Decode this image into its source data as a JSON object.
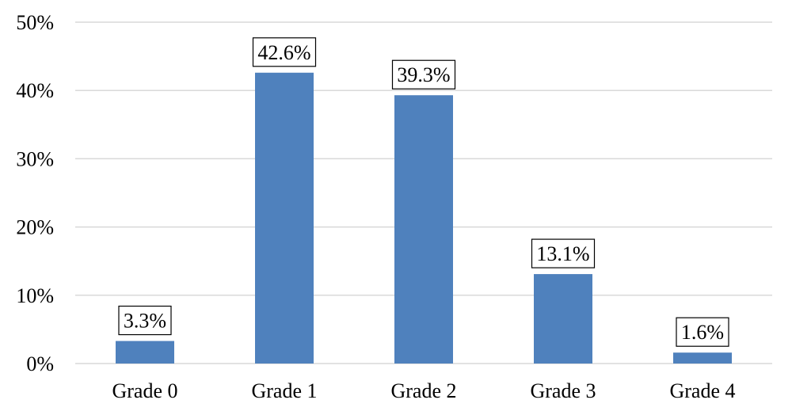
{
  "chart_data": {
    "type": "bar",
    "categories": [
      "Grade 0",
      "Grade 1",
      "Grade 2",
      "Grade 3",
      "Grade 4"
    ],
    "values": [
      3.3,
      42.6,
      39.3,
      13.1,
      1.6
    ],
    "data_labels": [
      "3.3%",
      "42.6%",
      "39.3%",
      "13.1%",
      "1.6%"
    ],
    "title": "",
    "xlabel": "",
    "ylabel": "",
    "ylim": [
      0,
      50
    ],
    "yticks": [
      0,
      10,
      20,
      30,
      40,
      50
    ],
    "ytick_labels": [
      "0%",
      "10%",
      "20%",
      "30%",
      "40%",
      "50%"
    ],
    "grid": true,
    "bar_color": "#4f81bd",
    "grid_color": "#d9d9d9"
  }
}
